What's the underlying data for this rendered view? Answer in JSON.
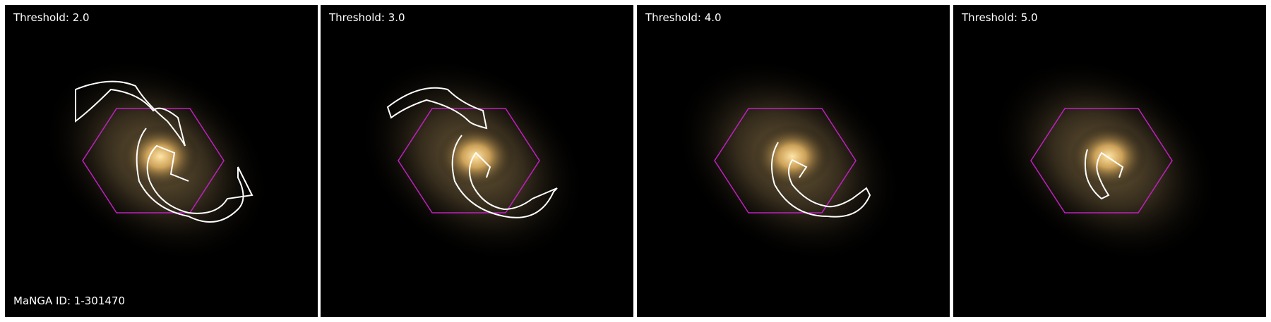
{
  "panels": [
    {
      "threshold_label": "Threshold: 2.0"
    },
    {
      "threshold_label": "Threshold: 3.0"
    },
    {
      "threshold_label": "Threshold: 4.0"
    },
    {
      "threshold_label": "Threshold: 5.0"
    }
  ],
  "galaxy_id_label": "MaNGA ID: 1-301470",
  "colors": {
    "background": "#000000",
    "contour": "#ffffff",
    "ifu_hexagon": "#c020c0",
    "galaxy_core": "#ffd890",
    "galaxy_disk": "#8a7448"
  },
  "icons": {
    "ifu_footprint": "hexagon",
    "contour": "white-outline"
  }
}
